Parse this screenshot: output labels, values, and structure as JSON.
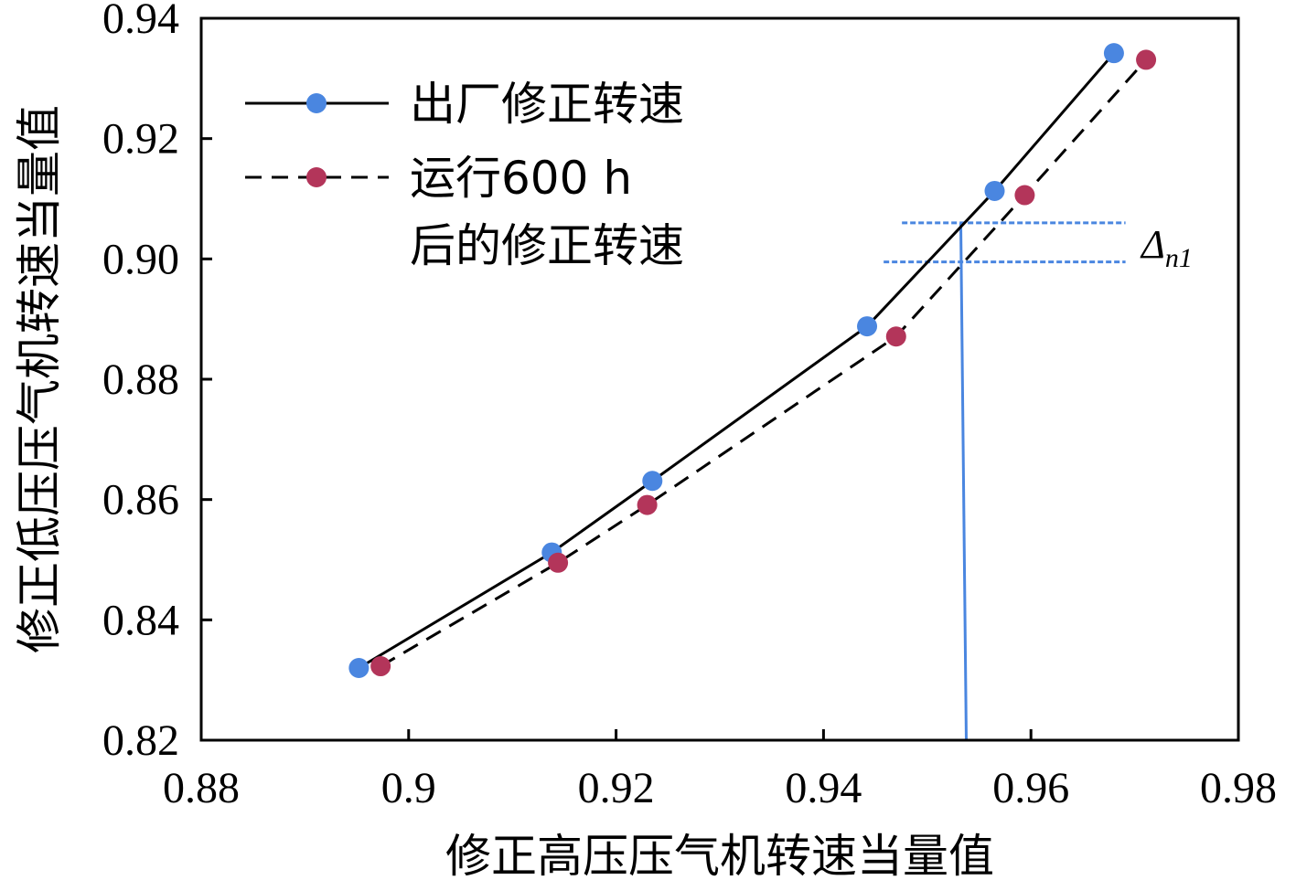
{
  "chart_data": {
    "type": "line",
    "title": "",
    "xlabel": "修正高压压气机转速当量值",
    "ylabel": "修正低压压气机转速当量值",
    "xlim": [
      0.88,
      0.98
    ],
    "ylim": [
      0.82,
      0.94
    ],
    "x_tick_labels": [
      "0.88",
      "0.9",
      "0.92",
      "0.94",
      "0.96",
      "0.98"
    ],
    "x_tick_values": [
      0.88,
      0.9,
      0.92,
      0.94,
      0.96,
      0.98
    ],
    "y_tick_labels": [
      "0.82",
      "0.84",
      "0.86",
      "0.88",
      "0.90",
      "0.92",
      "0.94"
    ],
    "y_tick_values": [
      0.82,
      0.84,
      0.86,
      0.88,
      0.9,
      0.92,
      0.94
    ],
    "grid": false,
    "legend_position": "top-left",
    "series": [
      {
        "name": "出厂修正转速",
        "line_style": "solid",
        "marker_color": "#4a86e0",
        "x": [
          0.8952,
          0.9138,
          0.9235,
          0.9442,
          0.9565,
          0.968
        ],
        "y": [
          0.832,
          0.8512,
          0.8631,
          0.8888,
          0.9113,
          0.9342
        ]
      },
      {
        "name": "运行600 h后的修正转速",
        "legend_lines": [
          "运行600 h",
          "后的修正转速"
        ],
        "line_style": "dashed",
        "marker_color": "#b3355a",
        "x": [
          0.8973,
          0.9144,
          0.923,
          0.947,
          0.9594,
          0.9711
        ],
        "y": [
          0.8323,
          0.8495,
          0.8591,
          0.8871,
          0.9106,
          0.9331
        ]
      }
    ],
    "annotation": {
      "label_main": "Δ",
      "label_sub": "n1",
      "x_value": 0.9535,
      "y_upper": 0.906,
      "y_lower": 0.8995,
      "x_from": 0.9458,
      "x_to": 0.97,
      "color": "#4a86e0"
    }
  }
}
